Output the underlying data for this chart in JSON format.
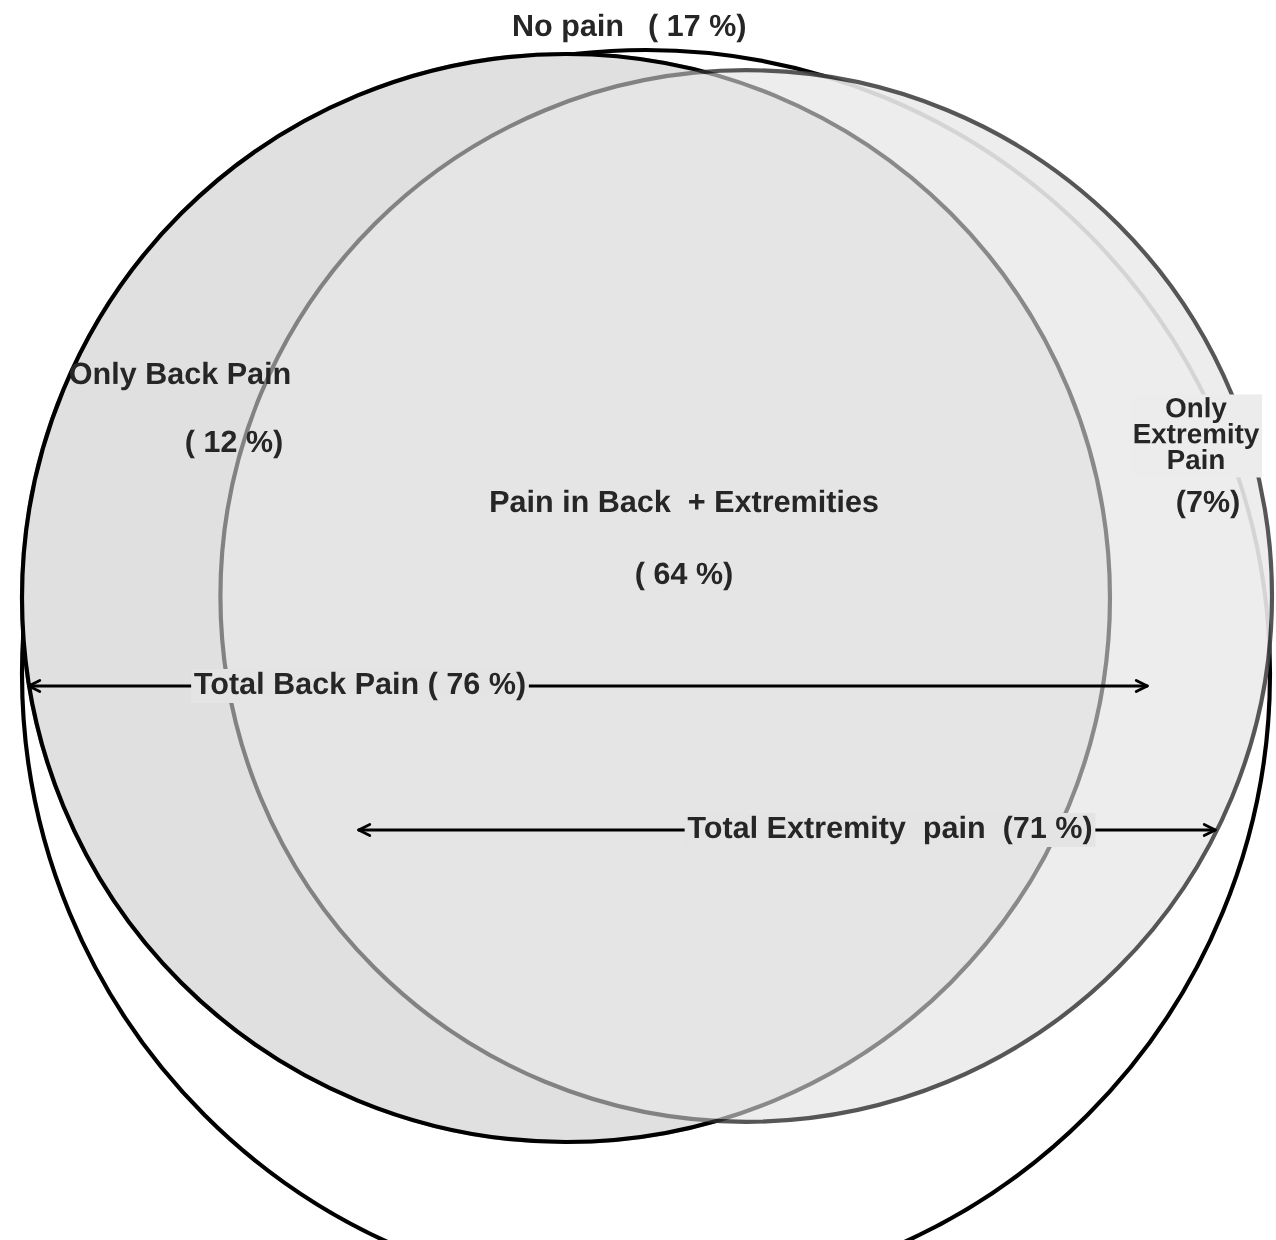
{
  "chart_data": {
    "type": "other",
    "categories": [
      "No pain",
      "Only Back Pain",
      "Pain in Back  + Extremities",
      "Only\nExtremity\nPain"
    ],
    "values": [
      17,
      12,
      64,
      7
    ],
    "value_labels": [
      "( 17 %)",
      "( 12 %)",
      "( 64 %)",
      "(7%)"
    ],
    "colors": [
      "#ffffff",
      "#e4e4e4",
      "#dadada",
      "#ececec"
    ],
    "annotations": [
      "Total Back Pain ( 76 %)",
      "Total Extremity  pain  (71 %)"
    ]
  }
}
